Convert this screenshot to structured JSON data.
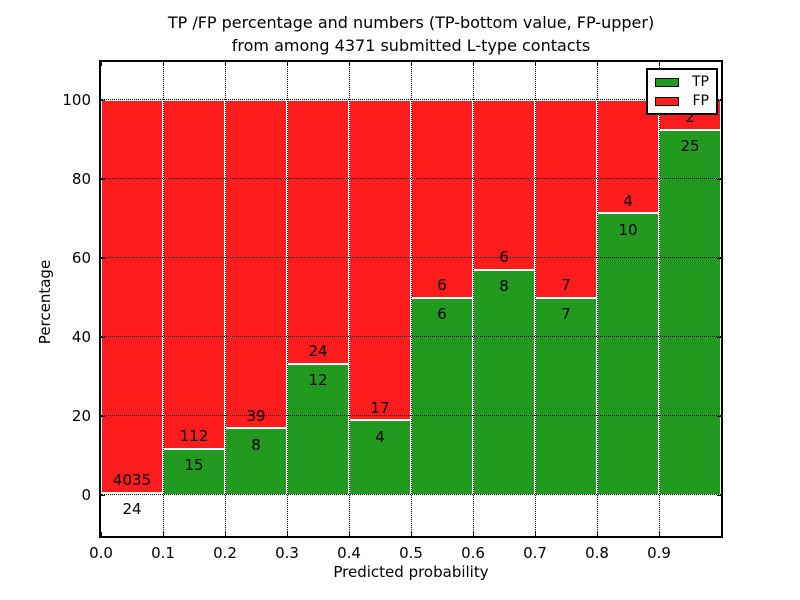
{
  "figure": {
    "title_line1": "TP /FP percentage and numbers (TP-bottom value, FP-upper)",
    "title_line2": "from among 4371 submitted L-type contacts",
    "background": "#ffffff"
  },
  "chart_data": {
    "type": "bar",
    "stacked": true,
    "normalized_to_percent": true,
    "title": "TP /FP percentage and numbers (TP-bottom value, FP-upper)\nfrom among 4371 submitted L-type contacts",
    "xlabel": "Predicted probability",
    "ylabel": "Percentage",
    "total_contacts": 4371,
    "grid": true,
    "grid_style": "dotted",
    "xlim": [
      0.0,
      1.0
    ],
    "ylim": [
      -10.3,
      109.7
    ],
    "x_ticks": [
      0.0,
      0.1,
      0.2,
      0.3,
      0.4,
      0.5,
      0.6,
      0.7,
      0.8,
      0.9
    ],
    "x_tick_labels": [
      "0.0",
      "0.1",
      "0.2",
      "0.3",
      "0.4",
      "0.5",
      "0.6",
      "0.7",
      "0.8",
      "0.9"
    ],
    "y_ticks": [
      0,
      20,
      40,
      60,
      80,
      100
    ],
    "y_tick_labels": [
      "0",
      "20",
      "40",
      "60",
      "80",
      "100"
    ],
    "bins": [
      {
        "range": "0.0-0.1",
        "tp": 24,
        "fp": 4035
      },
      {
        "range": "0.1-0.2",
        "tp": 15,
        "fp": 112
      },
      {
        "range": "0.2-0.3",
        "tp": 8,
        "fp": 39
      },
      {
        "range": "0.3-0.4",
        "tp": 12,
        "fp": 24
      },
      {
        "range": "0.4-0.5",
        "tp": 4,
        "fp": 17
      },
      {
        "range": "0.5-0.6",
        "tp": 6,
        "fp": 6
      },
      {
        "range": "0.6-0.7",
        "tp": 8,
        "fp": 6
      },
      {
        "range": "0.7-0.8",
        "tp": 7,
        "fp": 7
      },
      {
        "range": "0.8-0.9",
        "tp": 10,
        "fp": 4
      },
      {
        "range": "0.9-1.0",
        "tp": 25,
        "fp": 2
      }
    ],
    "series": [
      {
        "name": "TP",
        "color": "#22991f",
        "counts": [
          24,
          15,
          8,
          12,
          4,
          6,
          8,
          7,
          10,
          25
        ]
      },
      {
        "name": "FP",
        "color": "#ff1c1c",
        "counts": [
          4035,
          112,
          39,
          24,
          17,
          6,
          6,
          7,
          4,
          2
        ]
      }
    ],
    "legend": {
      "position": "upper right",
      "entries": [
        {
          "label": "TP",
          "color": "#22991f"
        },
        {
          "label": "FP",
          "color": "#ff1c1c"
        }
      ]
    }
  }
}
